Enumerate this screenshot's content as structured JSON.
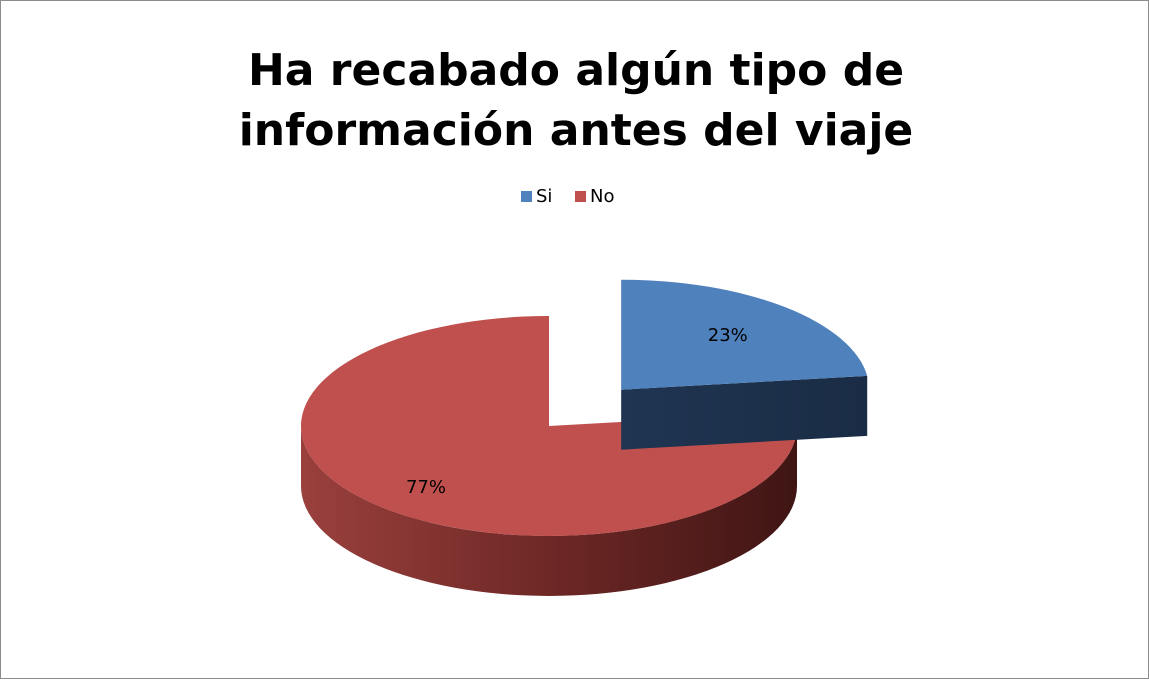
{
  "chart_data": {
    "type": "pie3d",
    "title": "Ha recabado algún tipo de información antes del viaje",
    "categories": [
      "Si",
      "No"
    ],
    "values": [
      23,
      77
    ],
    "value_labels": [
      "23%",
      "77%"
    ],
    "colors": [
      "#4f81bd",
      "#c0504d"
    ],
    "legend": "top"
  }
}
